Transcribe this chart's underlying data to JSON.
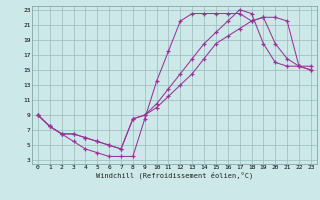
{
  "xlabel": "Windchill (Refroidissement éolien,°C)",
  "bg_color": "#cce8e8",
  "grid_color": "#99bbbb",
  "line_color": "#993399",
  "xmin": 0,
  "xmax": 23,
  "ymin": 3,
  "ymax": 23,
  "yticks": [
    3,
    5,
    7,
    9,
    11,
    13,
    15,
    17,
    19,
    21,
    23
  ],
  "xticks": [
    0,
    1,
    2,
    3,
    4,
    5,
    6,
    7,
    8,
    9,
    10,
    11,
    12,
    13,
    14,
    15,
    16,
    17,
    18,
    19,
    20,
    21,
    22,
    23
  ],
  "line1_x": [
    0,
    1,
    2,
    3,
    4,
    5,
    6,
    7,
    8,
    9,
    10,
    11,
    12,
    13,
    14,
    15,
    16,
    17,
    18,
    19,
    20,
    21,
    22,
    23
  ],
  "line1_y": [
    9,
    7.5,
    6.5,
    6.5,
    6.0,
    5.5,
    5.0,
    4.5,
    8.5,
    9.0,
    10.0,
    11.5,
    13.0,
    14.5,
    16.5,
    18.5,
    19.5,
    20.5,
    21.5,
    22.0,
    22.0,
    21.5,
    15.5,
    15.0
  ],
  "line2_x": [
    0,
    1,
    2,
    3,
    4,
    5,
    6,
    7,
    8,
    9,
    10,
    11,
    12,
    13,
    14,
    15,
    16,
    17,
    18,
    19,
    20,
    21,
    22,
    23
  ],
  "line2_y": [
    9,
    7.5,
    6.5,
    6.5,
    6.0,
    5.5,
    5.0,
    4.5,
    8.5,
    9.0,
    10.5,
    12.5,
    14.5,
    16.5,
    18.5,
    20.0,
    21.5,
    23.0,
    22.5,
    18.5,
    16.0,
    15.5,
    15.5,
    15.0
  ],
  "line3_x": [
    0,
    1,
    2,
    3,
    4,
    5,
    6,
    7,
    8,
    9,
    10,
    11,
    12,
    13,
    14,
    15,
    16,
    17,
    18,
    19,
    20,
    21,
    22,
    23
  ],
  "line3_y": [
    9,
    7.5,
    6.5,
    5.5,
    4.5,
    4.0,
    3.5,
    3.5,
    3.5,
    8.5,
    13.5,
    17.5,
    21.5,
    22.5,
    22.5,
    22.5,
    22.5,
    22.5,
    21.5,
    22.0,
    18.5,
    16.5,
    15.5,
    15.5
  ]
}
